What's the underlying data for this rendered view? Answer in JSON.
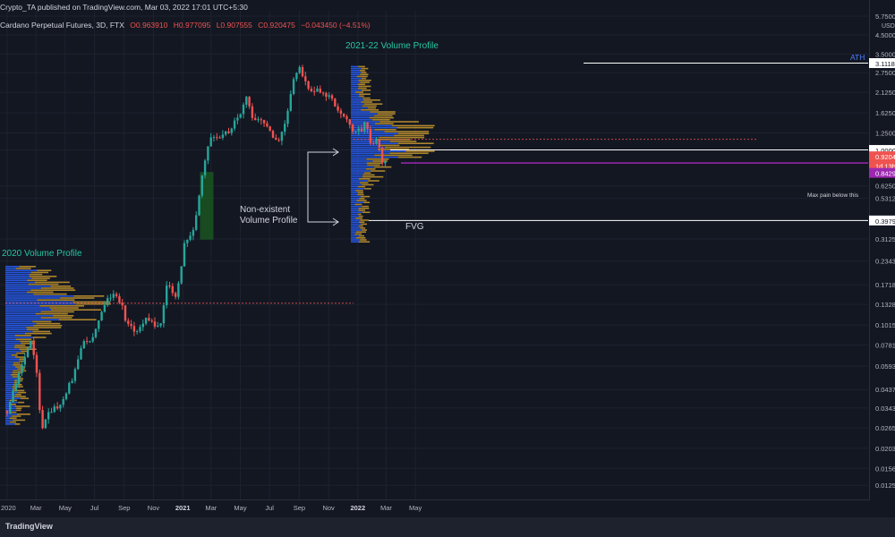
{
  "header": {
    "publish_line": "Crypto_TA published on TradingView.com, Mar 03, 2022 17:01 UTC+5:30",
    "symbol": "Cardano Perpetual Futures, 3D, FTX",
    "open": "O0.963910",
    "high": "H0.977095",
    "low": "L0.907555",
    "close": "C0.920475",
    "change": "−0.043450 (−4.51%)"
  },
  "footer": {
    "logo_text": "TradingView"
  },
  "chart_data": {
    "type": "candlestick",
    "scale": "log",
    "currency": "USD",
    "y_ticks": [
      "5.7500",
      "4.5000",
      "3.5000",
      "2.7500",
      "2.1250",
      "1.6250",
      "1.2500",
      "1.0000",
      "0.6250",
      "0.5312",
      "0.3125",
      "0.2343",
      "0.1718",
      "0.1328",
      "0.1015",
      "0.0781",
      "0.0593",
      "0.0437",
      "0.0343",
      "0.0265",
      "0.0203",
      "0.0156",
      "0.0125"
    ],
    "x_ticks": [
      "2020",
      "Mar",
      "May",
      "Jul",
      "Sep",
      "Nov",
      "2021",
      "Mar",
      "May",
      "Jul",
      "Sep",
      "Nov",
      "2022",
      "Mar",
      "May"
    ],
    "price_labels": [
      {
        "text": "3.1118",
        "color": "#ffffff",
        "text_color": "#131722"
      },
      {
        "text": "1.0000",
        "color": "#ffffff",
        "text_color": "#131722"
      },
      {
        "text": "0.9204",
        "color": "#ef5350",
        "text_color": "#ffffff"
      },
      {
        "text": "1d 13h",
        "color": "#ef5350",
        "text_color": "#ffffff"
      },
      {
        "text": "0.8429",
        "color": "#9c27b0",
        "text_color": "#ffffff"
      },
      {
        "text": "0.3979",
        "color": "#ffffff",
        "text_color": "#131722"
      }
    ],
    "annotations": {
      "ath": "ATH",
      "profile_2021": "2021-22 Volume Profile",
      "profile_2020": "2020 Volume Profile",
      "non_existent_1": "Non-existent",
      "non_existent_2": "Volume Profile",
      "fvg": "FVG",
      "max_pain": "Max pain below this"
    },
    "levels": {
      "ath": 3.1118,
      "resistance": 1.0,
      "max_pain": 0.8429,
      "fvg_bottom": 0.3979,
      "poc_2021": 1.15,
      "poc_2020": 0.135
    },
    "price_path": [
      [
        "2020-01-01",
        0.033
      ],
      [
        "2020-01-20",
        0.048
      ],
      [
        "2020-02-18",
        0.085
      ],
      [
        "2020-03-01",
        0.06
      ],
      [
        "2020-03-13",
        0.025
      ],
      [
        "2020-03-25",
        0.032
      ],
      [
        "2020-04-20",
        0.036
      ],
      [
        "2020-05-15",
        0.05
      ],
      [
        "2020-06-10",
        0.085
      ],
      [
        "2020-06-25",
        0.082
      ],
      [
        "2020-07-15",
        0.12
      ],
      [
        "2020-07-30",
        0.145
      ],
      [
        "2020-08-15",
        0.15
      ],
      [
        "2020-08-28",
        0.13
      ],
      [
        "2020-09-05",
        0.105
      ],
      [
        "2020-09-25",
        0.093
      ],
      [
        "2020-10-15",
        0.11
      ],
      [
        "2020-10-28",
        0.105
      ],
      [
        "2020-11-15",
        0.1
      ],
      [
        "2020-11-28",
        0.17
      ],
      [
        "2020-12-20",
        0.15
      ],
      [
        "2021-01-05",
        0.3
      ],
      [
        "2021-01-25",
        0.35
      ],
      [
        "2021-02-10",
        0.7
      ],
      [
        "2021-02-27",
        1.2
      ],
      [
        "2021-03-15",
        1.2
      ],
      [
        "2021-04-05",
        1.25
      ],
      [
        "2021-04-15",
        1.35
      ],
      [
        "2021-05-02",
        1.6
      ],
      [
        "2021-05-16",
        2.1
      ],
      [
        "2021-05-24",
        1.45
      ],
      [
        "2021-06-15",
        1.5
      ],
      [
        "2021-07-20",
        1.1
      ],
      [
        "2021-08-05",
        1.45
      ],
      [
        "2021-08-20",
        2.5
      ],
      [
        "2021-09-02",
        3.0
      ],
      [
        "2021-09-20",
        2.2
      ],
      [
        "2021-10-10",
        2.2
      ],
      [
        "2021-11-05",
        1.95
      ],
      [
        "2021-12-01",
        1.55
      ],
      [
        "2021-12-20",
        1.3
      ],
      [
        "2022-01-10",
        1.3
      ],
      [
        "2022-01-18",
        1.55
      ],
      [
        "2022-01-25",
        1.05
      ],
      [
        "2022-02-10",
        1.15
      ],
      [
        "2022-02-20",
        0.85
      ],
      [
        "2022-03-03",
        0.92
      ]
    ]
  }
}
